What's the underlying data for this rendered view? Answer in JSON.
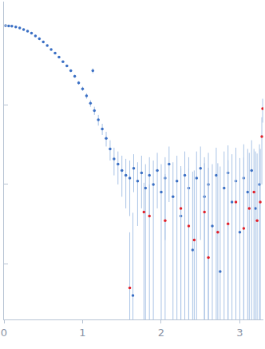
{
  "chart_data": {
    "type": "scatter",
    "log": "y",
    "tick_labels": "x",
    "grid": false,
    "xlim": [
      0,
      3.3
    ],
    "ylim": [
      0.0002,
      2
    ],
    "xticks": [
      0,
      1,
      2,
      3
    ],
    "yticks": [
      0.001,
      0.01,
      0.1,
      1
    ],
    "series": [
      {
        "color": "#3a6fc4",
        "marker": "circle",
        "x": [
          0.02,
          0.06,
          0.1,
          0.15,
          0.2,
          0.25,
          0.3,
          0.35,
          0.4,
          0.45,
          0.5,
          0.55,
          0.6,
          0.65,
          0.7,
          0.75,
          0.8,
          0.85,
          0.9,
          0.95,
          1.0,
          1.05,
          1.1,
          1.13,
          1.15,
          1.2,
          1.25,
          1.3,
          1.35,
          1.4,
          1.45,
          1.5,
          1.55,
          1.6,
          1.64,
          1.65,
          1.7,
          1.75,
          1.8,
          1.85,
          1.9,
          1.95,
          2.0,
          2.05,
          2.1,
          2.15,
          2.2,
          2.25,
          2.3,
          2.35,
          2.4,
          2.45,
          2.5,
          2.55,
          2.6,
          2.65,
          2.7,
          2.75,
          2.8,
          2.85,
          2.9,
          2.95,
          3.0,
          3.05,
          3.1,
          3.15,
          3.2,
          3.25
        ],
        "values": [
          1.0,
          0.99,
          0.98,
          0.96,
          0.93,
          0.89,
          0.85,
          0.8,
          0.74,
          0.68,
          0.62,
          0.56,
          0.5,
          0.45,
          0.4,
          0.35,
          0.31,
          0.27,
          0.23,
          0.19,
          0.16,
          0.13,
          0.105,
          0.27,
          0.085,
          0.065,
          0.05,
          0.038,
          0.028,
          0.021,
          0.018,
          0.015,
          0.013,
          0.012,
          0.0004,
          0.016,
          0.011,
          0.014,
          0.009,
          0.013,
          0.01,
          0.015,
          0.008,
          0.012,
          0.018,
          0.007,
          0.011,
          0.004,
          0.013,
          0.009,
          0.0015,
          0.012,
          0.016,
          0.007,
          0.01,
          0.003,
          0.013,
          0.0008,
          0.009,
          0.014,
          0.006,
          0.011,
          0.0025,
          0.012,
          0.008,
          0.015,
          0.005,
          0.01
        ],
        "errors": [
          0.01,
          0.01,
          0.01,
          0.01,
          0.01,
          0.01,
          0.01,
          0.01,
          0.01,
          0.01,
          0.01,
          0.01,
          0.01,
          0.01,
          0.01,
          0.01,
          0.01,
          0.01,
          0.01,
          0.01,
          0.01,
          0.01,
          0.01,
          0.02,
          0.01,
          0.01,
          0.008,
          0.008,
          0.008,
          0.008,
          0.008,
          0.008,
          0.008,
          0.008,
          0.004,
          0.008,
          0.008,
          0.009,
          0.009,
          0.009,
          0.01,
          0.01,
          0.01,
          0.01,
          0.012,
          0.012,
          0.012,
          0.012,
          0.013,
          0.013,
          0.013,
          0.014,
          0.014,
          0.015,
          0.015,
          0.015,
          0.016,
          0.016,
          0.017,
          0.017,
          0.018,
          0.018,
          0.019,
          0.02,
          0.02,
          0.021,
          0.021,
          0.022
        ]
      },
      {
        "color": "#e0202a",
        "marker": "circle",
        "x": [
          1.6,
          1.78,
          1.85,
          2.05,
          2.25,
          2.35,
          2.42,
          2.55,
          2.6,
          2.72,
          2.85,
          2.95,
          3.05,
          3.12,
          3.18,
          3.22,
          3.26,
          3.28,
          3.29
        ],
        "values": [
          0.0005,
          0.0045,
          0.004,
          0.0035,
          0.005,
          0.003,
          0.002,
          0.0045,
          0.0012,
          0.0025,
          0.0032,
          0.006,
          0.0028,
          0.005,
          0.008,
          0.0035,
          0.006,
          0.04,
          0.09
        ],
        "errors": [
          0.002,
          0.006,
          0.006,
          0.01,
          0.012,
          0.013,
          0.013,
          0.014,
          0.015,
          0.016,
          0.017,
          0.018,
          0.019,
          0.02,
          0.02,
          0.021,
          0.022,
          0.03,
          0.03
        ]
      }
    ]
  }
}
